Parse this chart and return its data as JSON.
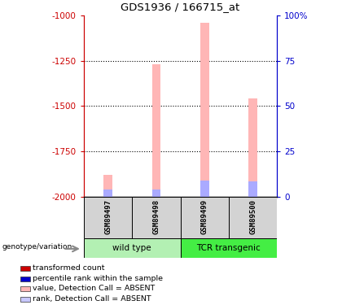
{
  "title": "GDS1936 / 166715_at",
  "samples": [
    "GSM89497",
    "GSM89498",
    "GSM89499",
    "GSM89500"
  ],
  "ylim_left": [
    -2000,
    -1000
  ],
  "ylim_right": [
    0,
    100
  ],
  "yticks_left": [
    -2000,
    -1750,
    -1500,
    -1250,
    -1000
  ],
  "yticks_right": [
    0,
    25,
    50,
    75,
    100
  ],
  "bar_width": 0.18,
  "pink_values": [
    -1880,
    -1270,
    -1040,
    -1460
  ],
  "blue_values": [
    -1960,
    -1960,
    -1910,
    -1915
  ],
  "pink_color": "#ffb6b6",
  "blue_color": "#aaaaff",
  "left_axis_color": "#cc0000",
  "right_axis_color": "#0000cc",
  "sample_bg_color": "#d3d3d3",
  "wt_color": "#b3f0b3",
  "tcr_color": "#44ee44",
  "legend_items": [
    {
      "color": "#cc0000",
      "label": "transformed count"
    },
    {
      "color": "#0000cc",
      "label": "percentile rank within the sample"
    },
    {
      "color": "#ffb6b6",
      "label": "value, Detection Call = ABSENT"
    },
    {
      "color": "#c8c8ff",
      "label": "rank, Detection Call = ABSENT"
    }
  ],
  "genotype_label": "genotype/variation",
  "grid_ticks": [
    -1250,
    -1500,
    -1750
  ]
}
